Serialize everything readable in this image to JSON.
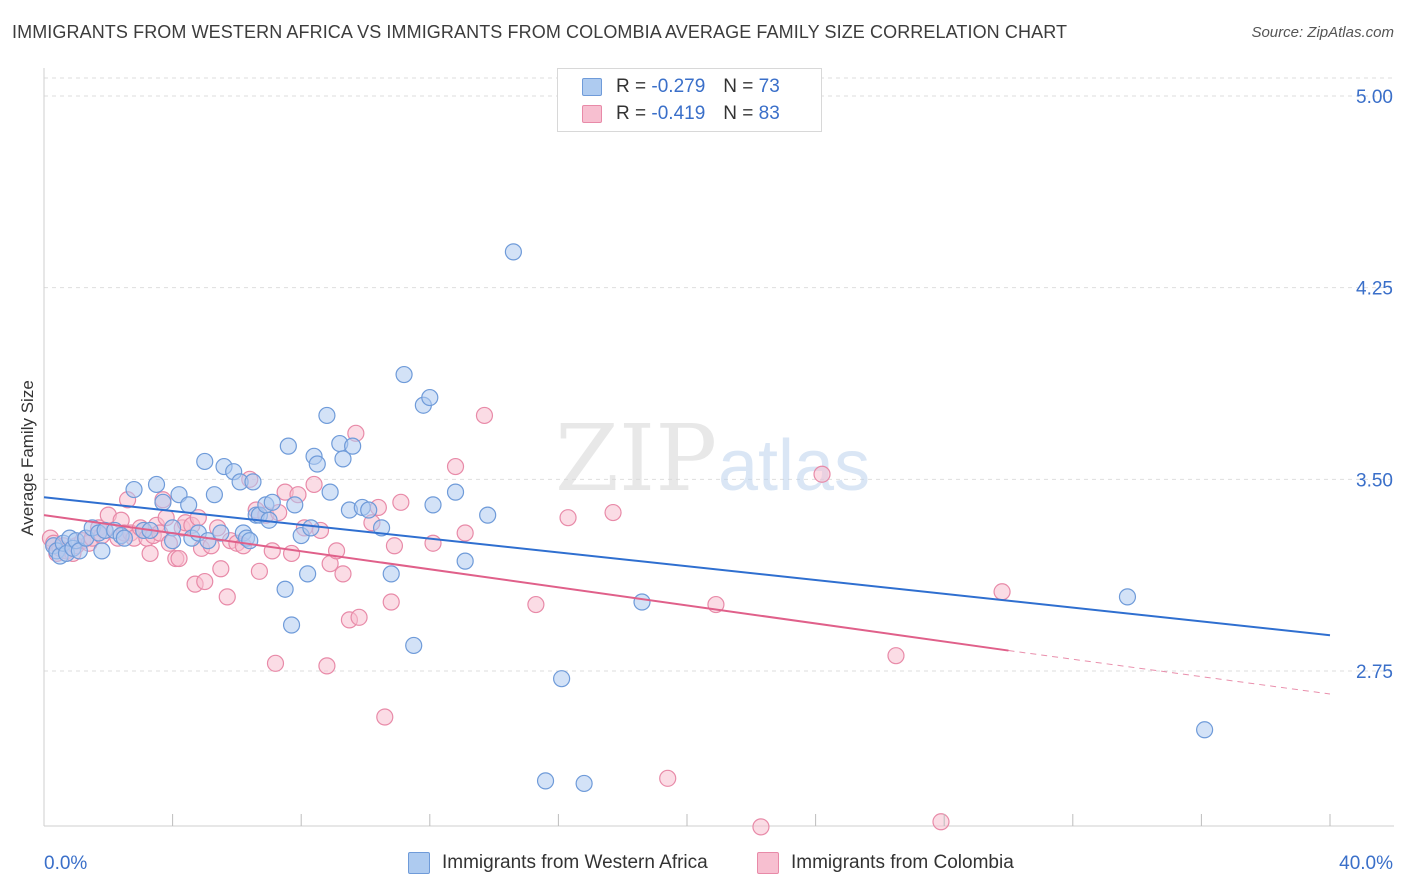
{
  "header": {
    "title": "IMMIGRANTS FROM WESTERN AFRICA VS IMMIGRANTS FROM COLOMBIA AVERAGE FAMILY SIZE CORRELATION CHART",
    "source": "Source: ZipAtlas.com"
  },
  "watermark": {
    "part1": "ZIP",
    "part2": "atlas"
  },
  "legend": {
    "rows": [
      {
        "r_label": "R =",
        "r_value": "-0.279",
        "n_label": "N =",
        "n_value": "73"
      },
      {
        "r_label": "R =",
        "r_value": "-0.419",
        "n_label": "N =",
        "n_value": "83"
      }
    ]
  },
  "bottom_legend": {
    "items": [
      "Immigrants from Western Africa",
      "Immigrants from Colombia"
    ]
  },
  "colors": {
    "blue_fill": "#aecbf0",
    "blue_stroke": "#6f9bd9",
    "blue_line": "#2f6fd0",
    "pink_fill": "#f7bfd0",
    "pink_stroke": "#e88aa8",
    "pink_line": "#e0608a",
    "tick_text": "#3a6fc9",
    "grid": "#dedede"
  },
  "chart_data": {
    "type": "scatter",
    "title": "IMMIGRANTS FROM WESTERN AFRICA VS IMMIGRANTS FROM COLOMBIA AVERAGE FAMILY SIZE CORRELATION CHART",
    "xlabel": "",
    "ylabel": "Average Family Size",
    "x_tick_labels": [
      "0.0%",
      "40.0%"
    ],
    "y_tick_labels": [
      "5.00",
      "4.25",
      "3.50",
      "2.75"
    ],
    "y_ticks": [
      5.0,
      4.25,
      3.5,
      2.75
    ],
    "xlim": [
      0,
      40
    ],
    "ylim": [
      2.05,
      5.1
    ],
    "grid": true,
    "legend_position": "top-center",
    "series": [
      {
        "name": "Immigrants from Western Africa",
        "r": -0.279,
        "n": 73,
        "trend": {
          "x": [
            0,
            40
          ],
          "y": [
            3.43,
            2.89
          ]
        },
        "points": [
          [
            0.3,
            3.24
          ],
          [
            0.4,
            3.22
          ],
          [
            0.5,
            3.2
          ],
          [
            0.6,
            3.25
          ],
          [
            0.7,
            3.21
          ],
          [
            0.8,
            3.27
          ],
          [
            0.9,
            3.23
          ],
          [
            1.0,
            3.26
          ],
          [
            1.1,
            3.22
          ],
          [
            1.3,
            3.27
          ],
          [
            1.5,
            3.31
          ],
          [
            1.7,
            3.29
          ],
          [
            1.8,
            3.22
          ],
          [
            1.9,
            3.3
          ],
          [
            2.2,
            3.3
          ],
          [
            2.4,
            3.28
          ],
          [
            2.5,
            3.27
          ],
          [
            2.8,
            3.46
          ],
          [
            3.1,
            3.3
          ],
          [
            3.3,
            3.3
          ],
          [
            3.5,
            3.48
          ],
          [
            3.7,
            3.41
          ],
          [
            4.0,
            3.31
          ],
          [
            4.0,
            3.26
          ],
          [
            4.2,
            3.44
          ],
          [
            4.5,
            3.4
          ],
          [
            4.6,
            3.27
          ],
          [
            4.8,
            3.29
          ],
          [
            5.0,
            3.57
          ],
          [
            5.1,
            3.26
          ],
          [
            5.3,
            3.44
          ],
          [
            5.5,
            3.29
          ],
          [
            5.6,
            3.55
          ],
          [
            5.9,
            3.53
          ],
          [
            6.1,
            3.49
          ],
          [
            6.2,
            3.29
          ],
          [
            6.3,
            3.27
          ],
          [
            6.4,
            3.26
          ],
          [
            6.5,
            3.49
          ],
          [
            6.6,
            3.36
          ],
          [
            6.7,
            3.36
          ],
          [
            6.9,
            3.4
          ],
          [
            7.0,
            3.34
          ],
          [
            7.1,
            3.41
          ],
          [
            7.5,
            3.07
          ],
          [
            7.6,
            3.63
          ],
          [
            7.7,
            2.93
          ],
          [
            7.8,
            3.4
          ],
          [
            8.0,
            3.28
          ],
          [
            8.2,
            3.13
          ],
          [
            8.3,
            3.31
          ],
          [
            8.4,
            3.59
          ],
          [
            8.5,
            3.56
          ],
          [
            8.8,
            3.75
          ],
          [
            8.9,
            3.45
          ],
          [
            9.2,
            3.64
          ],
          [
            9.3,
            3.58
          ],
          [
            9.5,
            3.38
          ],
          [
            9.6,
            3.63
          ],
          [
            9.9,
            3.39
          ],
          [
            10.1,
            3.38
          ],
          [
            10.5,
            3.31
          ],
          [
            10.8,
            3.13
          ],
          [
            11.2,
            3.91
          ],
          [
            11.5,
            2.85
          ],
          [
            11.8,
            3.79
          ],
          [
            12.0,
            3.82
          ],
          [
            12.1,
            3.4
          ],
          [
            12.8,
            3.45
          ],
          [
            13.1,
            3.18
          ],
          [
            13.8,
            3.36
          ],
          [
            14.6,
            4.39
          ],
          [
            15.6,
            2.32
          ],
          [
            16.1,
            2.72
          ],
          [
            16.8,
            2.31
          ],
          [
            18.6,
            3.02
          ],
          [
            33.7,
            3.04
          ],
          [
            36.1,
            2.52
          ]
        ]
      },
      {
        "name": "Immigrants from Colombia",
        "r": -0.419,
        "n": 83,
        "trend": {
          "x": [
            0,
            30
          ],
          "y": [
            3.36,
            2.83
          ]
        },
        "trend_dashed": {
          "x": [
            30,
            40
          ],
          "y": [
            2.83,
            2.66
          ]
        },
        "points": [
          [
            0.2,
            3.27
          ],
          [
            0.3,
            3.25
          ],
          [
            0.4,
            3.21
          ],
          [
            0.5,
            3.23
          ],
          [
            0.6,
            3.24
          ],
          [
            0.7,
            3.22
          ],
          [
            0.9,
            3.21
          ],
          [
            1.0,
            3.24
          ],
          [
            1.2,
            3.26
          ],
          [
            1.4,
            3.25
          ],
          [
            1.5,
            3.27
          ],
          [
            1.7,
            3.31
          ],
          [
            1.8,
            3.28
          ],
          [
            1.9,
            3.3
          ],
          [
            2.0,
            3.36
          ],
          [
            2.3,
            3.27
          ],
          [
            2.4,
            3.34
          ],
          [
            2.5,
            3.29
          ],
          [
            2.6,
            3.42
          ],
          [
            2.7,
            3.29
          ],
          [
            2.8,
            3.27
          ],
          [
            3.0,
            3.31
          ],
          [
            3.1,
            3.3
          ],
          [
            3.2,
            3.27
          ],
          [
            3.3,
            3.21
          ],
          [
            3.4,
            3.28
          ],
          [
            3.5,
            3.32
          ],
          [
            3.6,
            3.29
          ],
          [
            3.7,
            3.42
          ],
          [
            3.8,
            3.35
          ],
          [
            3.9,
            3.25
          ],
          [
            4.1,
            3.19
          ],
          [
            4.2,
            3.19
          ],
          [
            4.3,
            3.31
          ],
          [
            4.4,
            3.33
          ],
          [
            4.6,
            3.32
          ],
          [
            4.7,
            3.09
          ],
          [
            4.8,
            3.35
          ],
          [
            4.9,
            3.23
          ],
          [
            5.0,
            3.1
          ],
          [
            5.2,
            3.24
          ],
          [
            5.4,
            3.31
          ],
          [
            5.5,
            3.15
          ],
          [
            5.7,
            3.04
          ],
          [
            5.8,
            3.26
          ],
          [
            6.0,
            3.25
          ],
          [
            6.2,
            3.24
          ],
          [
            6.4,
            3.5
          ],
          [
            6.6,
            3.38
          ],
          [
            6.7,
            3.14
          ],
          [
            6.9,
            3.36
          ],
          [
            7.1,
            3.22
          ],
          [
            7.3,
            3.37
          ],
          [
            7.5,
            3.45
          ],
          [
            7.7,
            3.21
          ],
          [
            7.9,
            3.44
          ],
          [
            7.2,
            2.78
          ],
          [
            8.1,
            3.31
          ],
          [
            8.4,
            3.48
          ],
          [
            8.6,
            3.3
          ],
          [
            8.9,
            3.17
          ],
          [
            8.8,
            2.77
          ],
          [
            9.1,
            3.22
          ],
          [
            9.3,
            3.13
          ],
          [
            9.5,
            2.95
          ],
          [
            9.7,
            3.68
          ],
          [
            9.8,
            2.96
          ],
          [
            10.2,
            3.33
          ],
          [
            10.4,
            3.39
          ],
          [
            10.6,
            2.57
          ],
          [
            10.8,
            3.02
          ],
          [
            10.9,
            3.24
          ],
          [
            11.1,
            3.41
          ],
          [
            12.1,
            3.25
          ],
          [
            12.8,
            3.55
          ],
          [
            13.1,
            3.29
          ],
          [
            13.7,
            3.75
          ],
          [
            15.3,
            3.01
          ],
          [
            16.3,
            3.35
          ],
          [
            17.7,
            3.37
          ],
          [
            19.4,
            2.33
          ],
          [
            20.9,
            3.01
          ],
          [
            24.2,
            3.52
          ],
          [
            26.5,
            2.81
          ],
          [
            29.8,
            3.06
          ],
          [
            22.3,
            2.14
          ],
          [
            27.9,
            2.16
          ]
        ]
      }
    ]
  }
}
